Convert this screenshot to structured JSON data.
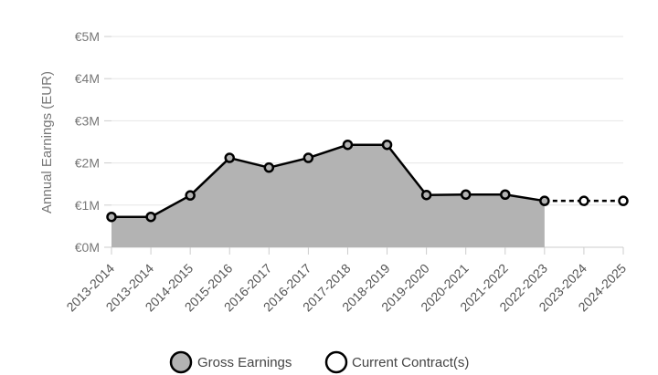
{
  "chart_data": {
    "type": "area",
    "ylabel": "Annual Earnings (EUR)",
    "y_ticks": [
      "€0M",
      "€1M",
      "€2M",
      "€3M",
      "€4M",
      "€5M"
    ],
    "ylim": [
      0,
      5
    ],
    "categories": [
      "2013-2014",
      "2013-2014",
      "2014-2015",
      "2015-2016",
      "2016-2017",
      "2016-2017",
      "2017-2018",
      "2018-2019",
      "2019-2020",
      "2020-2021",
      "2021-2022",
      "2022-2023",
      "2023-2024",
      "2024-2025"
    ],
    "series": [
      {
        "name": "Gross Earnings",
        "color": "#b3b3b3",
        "values": [
          0.72,
          0.72,
          1.23,
          2.12,
          1.89,
          2.12,
          2.43,
          2.43,
          1.24,
          1.25,
          1.25,
          1.1,
          null,
          null
        ]
      },
      {
        "name": "Current Contract(s)",
        "color": "#ffffff",
        "values": [
          null,
          null,
          null,
          null,
          null,
          null,
          null,
          null,
          null,
          null,
          null,
          1.1,
          1.1,
          1.1
        ]
      }
    ],
    "grid": true,
    "legend_position": "bottom"
  }
}
